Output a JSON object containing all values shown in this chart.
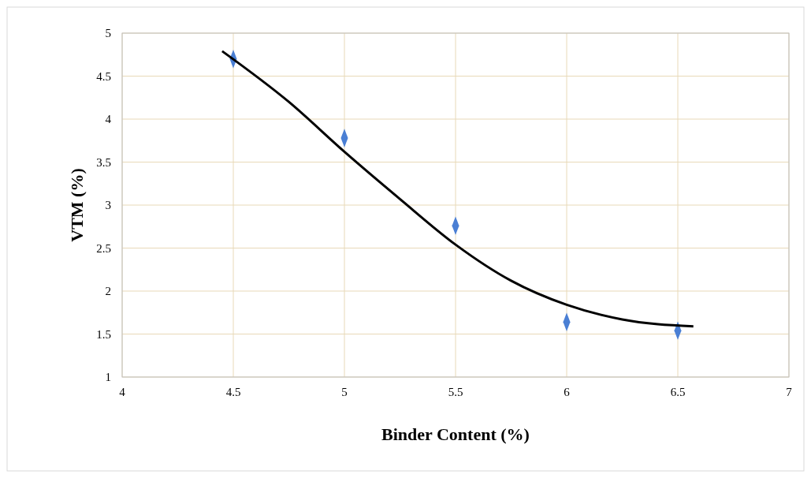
{
  "chart_data": {
    "type": "scatter",
    "xlabel": "Binder Content (%)",
    "ylabel": "VTM (%)",
    "xlim": [
      4,
      7
    ],
    "xticks": [
      4,
      4.5,
      5,
      5.5,
      6,
      6.5,
      7
    ],
    "ylim": [
      1,
      5
    ],
    "yticks": [
      1,
      1.5,
      2,
      2.5,
      3,
      3.5,
      4,
      4.5,
      5
    ],
    "grid": true,
    "series": [
      {
        "color": "#4a7fd4",
        "marker": "diamond",
        "x": [
          4.5,
          5,
          5.5,
          6,
          6.5
        ],
        "values": [
          4.7,
          3.78,
          2.76,
          1.64,
          1.54
        ]
      },
      {
        "type": "line",
        "color": "#000000",
        "x": [
          4.45,
          4.75,
          5,
          5.25,
          5.5,
          5.75,
          6,
          6.25,
          6.57
        ],
        "values": [
          4.79,
          4.2,
          3.62,
          3.07,
          2.54,
          2.12,
          1.84,
          1.67,
          1.59
        ]
      }
    ]
  }
}
